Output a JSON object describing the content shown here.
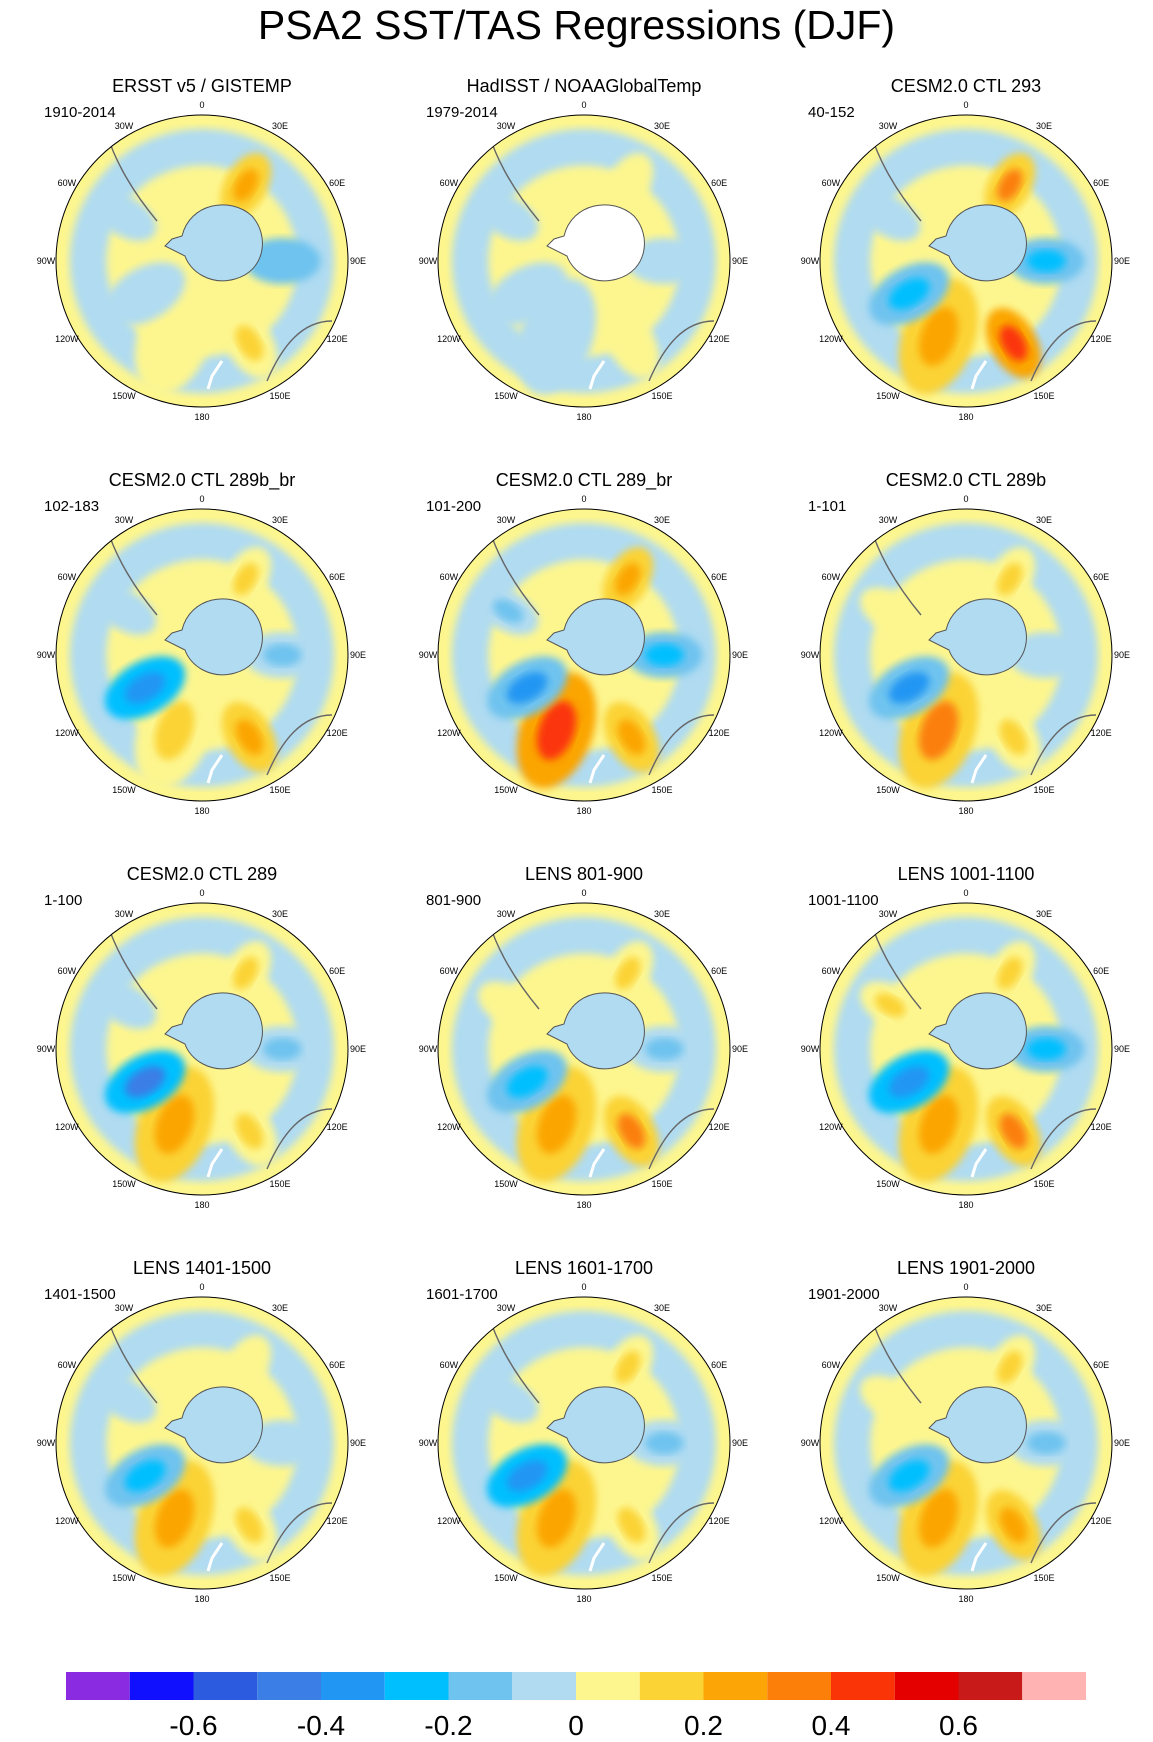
{
  "title": "PSA2 SST/TAS Regressions (DJF)",
  "chart_data": {
    "type": "polar-contour-map",
    "projection": "south polar stereographic",
    "season": "DJF",
    "longitude_labels": [
      "0",
      "30E",
      "60E",
      "90E",
      "120E",
      "150E",
      "180",
      "150W",
      "120W",
      "90W",
      "60W",
      "30W"
    ],
    "colorbar": {
      "levels": [
        -0.7,
        -0.6,
        -0.5,
        -0.4,
        -0.3,
        -0.2,
        -0.1,
        0,
        0.1,
        0.2,
        0.3,
        0.4,
        0.5,
        0.6,
        0.7
      ],
      "colors": [
        "#8a2be2",
        "#1010ff",
        "#2c5be0",
        "#3a7ee6",
        "#2196f3",
        "#00bfff",
        "#6ec3ef",
        "#b0dbf1",
        "#fdf68f",
        "#fbd334",
        "#fba506",
        "#fb7f09",
        "#fb3407",
        "#e50000",
        "#c91a1a",
        "#ffb3b3"
      ],
      "tick_labels": [
        "-0.6",
        "-0.4",
        "-0.2",
        "0",
        "0.2",
        "0.4",
        "0.6"
      ],
      "tick_values": [
        -0.6,
        -0.4,
        -0.2,
        0,
        0.2,
        0.4,
        0.6
      ]
    },
    "panels": [
      {
        "title": "ERSST v5 / GISTEMP",
        "period": "1910-2014",
        "pattern": [
          0.05,
          -0.05,
          0.15,
          -0.2,
          0.2,
          -0.1
        ]
      },
      {
        "title": "HadISST / NOAAGlobalTemp",
        "period": "1979-2014",
        "pattern": [
          -0.05,
          -0.05,
          0.05,
          -0.1,
          0.05,
          -0.05
        ]
      },
      {
        "title": "CESM2.0 CTL 293",
        "period": "40-152",
        "pattern": [
          0.25,
          -0.25,
          0.4,
          -0.3,
          0.3,
          -0.1
        ]
      },
      {
        "title": "CESM2.0 CTL 289b_br",
        "period": "102-183",
        "pattern": [
          0.15,
          -0.4,
          0.25,
          -0.15,
          0.1,
          -0.1
        ]
      },
      {
        "title": "CESM2.0 CTL 289_br",
        "period": "101-200",
        "pattern": [
          0.45,
          -0.35,
          0.2,
          -0.25,
          0.2,
          -0.15
        ]
      },
      {
        "title": "CESM2.0 CTL 289b",
        "period": "1-101",
        "pattern": [
          0.3,
          -0.35,
          0.15,
          -0.1,
          0.15,
          0.05
        ]
      },
      {
        "title": "CESM2.0 CTL 289",
        "period": "1-100",
        "pattern": [
          0.2,
          -0.45,
          0.15,
          -0.15,
          0.1,
          -0.1
        ]
      },
      {
        "title": "LENS 801-900",
        "period": "801-900",
        "pattern": [
          0.2,
          -0.3,
          0.3,
          -0.15,
          0.1,
          0.05
        ]
      },
      {
        "title": "LENS 1001-1100",
        "period": "1001-1100",
        "pattern": [
          0.25,
          -0.4,
          0.3,
          -0.25,
          0.15,
          0.1
        ]
      },
      {
        "title": "LENS 1401-1500",
        "period": "1401-1500",
        "pattern": [
          0.25,
          -0.25,
          0.1,
          -0.1,
          0.05,
          -0.05
        ]
      },
      {
        "title": "LENS 1601-1700",
        "period": "1601-1700",
        "pattern": [
          0.2,
          -0.4,
          0.15,
          -0.15,
          0.1,
          -0.05
        ]
      },
      {
        "title": "LENS 1901-2000",
        "period": "1901-2000",
        "pattern": [
          0.2,
          -0.3,
          0.2,
          -0.15,
          0.15,
          0.05
        ]
      }
    ]
  }
}
